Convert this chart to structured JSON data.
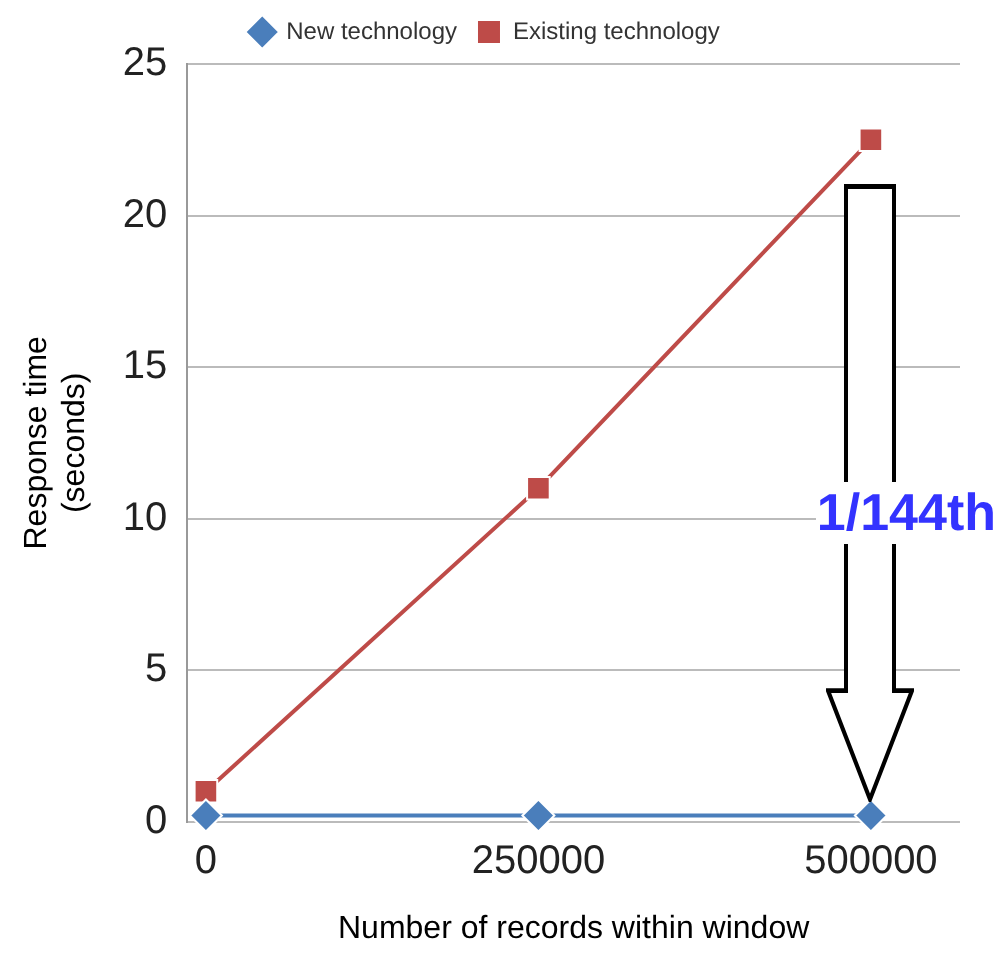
{
  "chart_data": {
    "type": "line",
    "xlabel": "Number of records within window",
    "ylabel": "Response time\n(seconds)",
    "x": [
      0,
      250000,
      500000
    ],
    "xlim": [
      -14000,
      567000
    ],
    "xticks": [
      0,
      250000,
      500000
    ],
    "ylim": [
      0,
      25
    ],
    "yticks": [
      0,
      5,
      10,
      15,
      20,
      25
    ],
    "series": [
      {
        "name": "New technology",
        "color": "#4a7ebb",
        "values": [
          0.2,
          0.2,
          0.2
        ],
        "marker": "diamond"
      },
      {
        "name": "Existing technology",
        "color": "#be4b48",
        "values": [
          1,
          11,
          22.5
        ],
        "marker": "square"
      }
    ],
    "grid": "y",
    "legend": "top",
    "annotations": [
      "1/144th"
    ]
  }
}
